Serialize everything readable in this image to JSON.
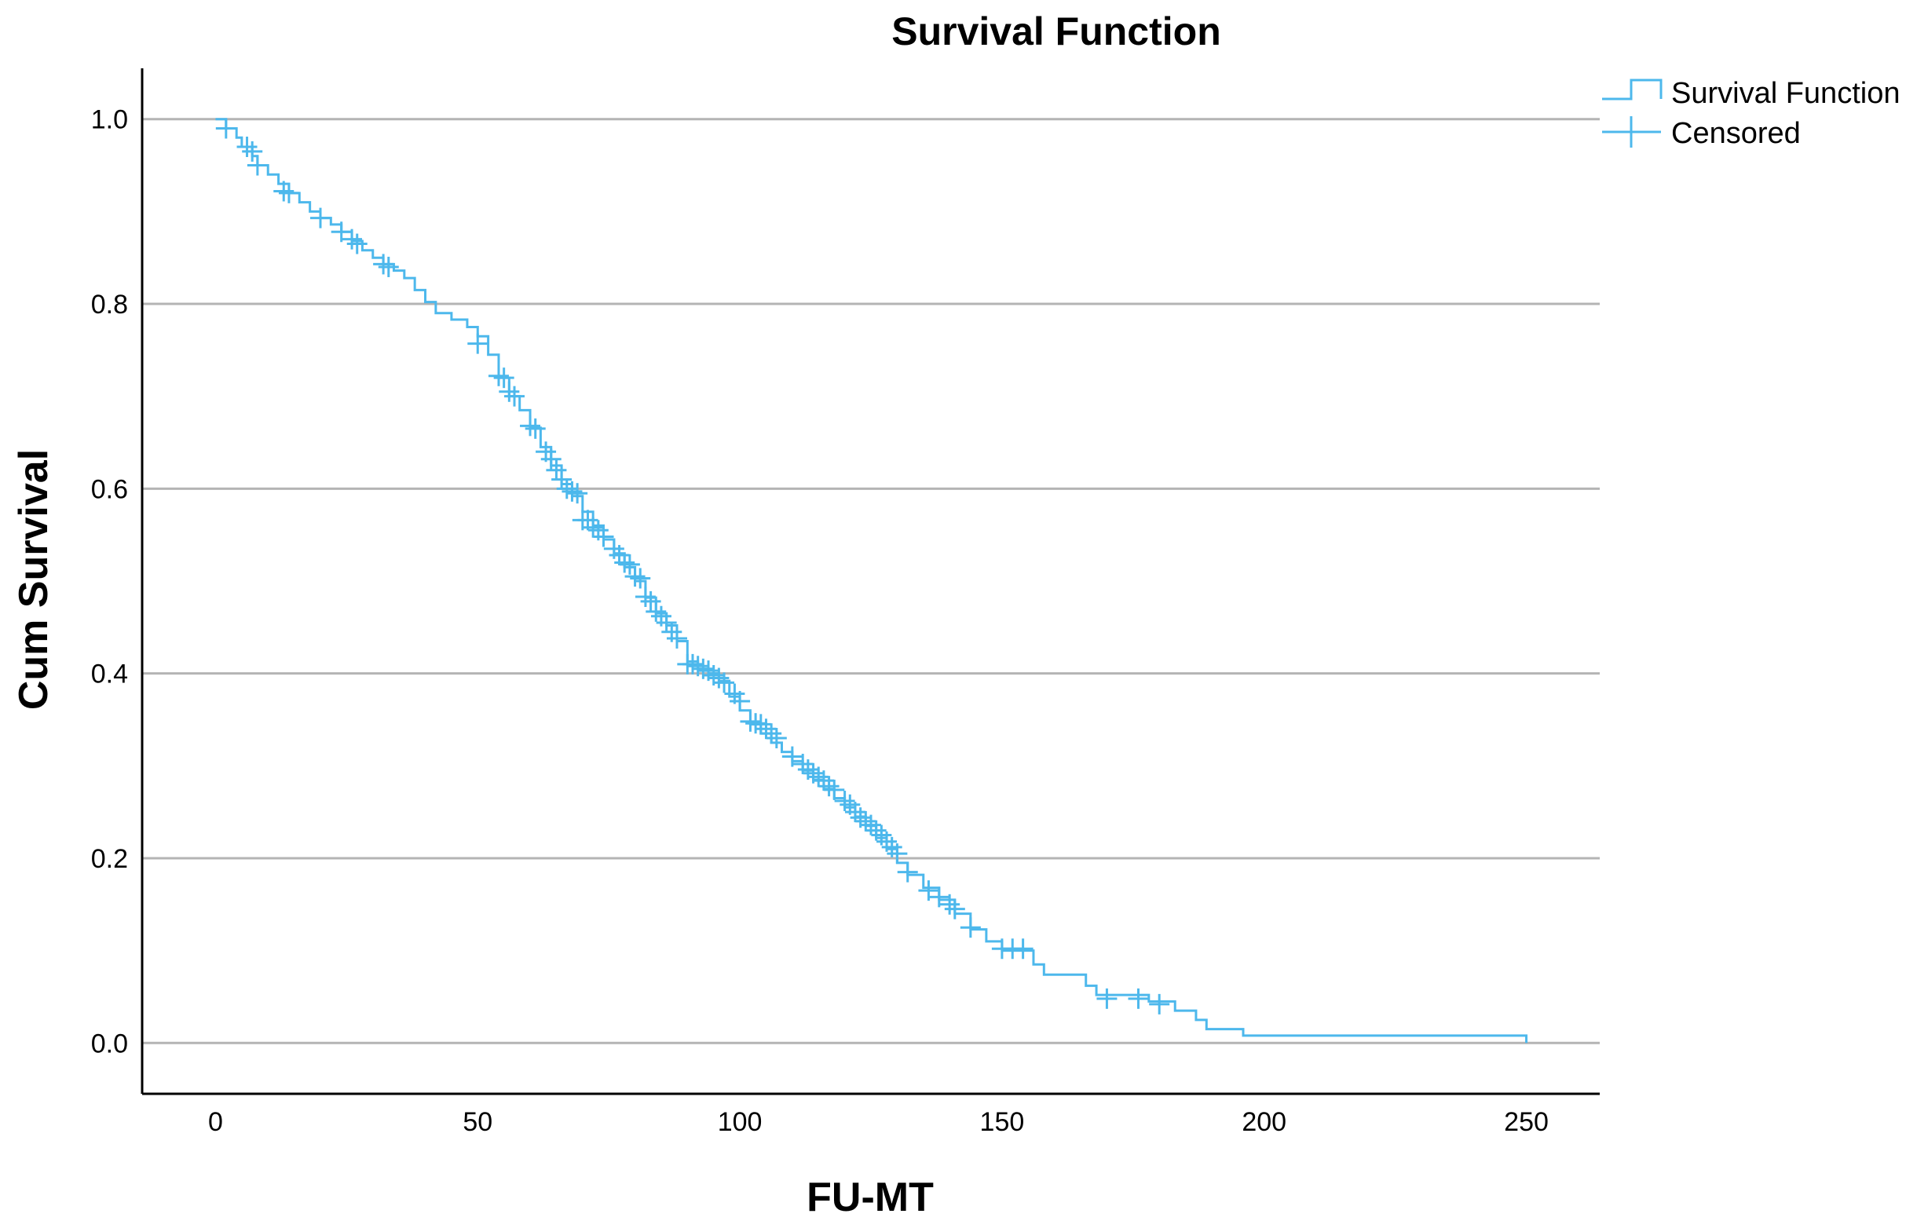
{
  "colors": {
    "series": "#4db8ec",
    "grid": "#b4b4b4",
    "axis": "#000000",
    "text": "#000000"
  },
  "chart_data": {
    "type": "line",
    "subtype": "kaplan-meier survival curve (step)",
    "title": "Survival Function",
    "xlabel": "FU-MT",
    "ylabel": "Cum Survival",
    "xlim": [
      -14,
      264
    ],
    "ylim": [
      -0.055,
      1.055
    ],
    "x_ticks": [
      0,
      50,
      100,
      150,
      200,
      250
    ],
    "y_ticks": [
      0.0,
      0.2,
      0.4,
      0.6,
      0.8,
      1.0
    ],
    "x_tick_labels": [
      "0",
      "50",
      "100",
      "150",
      "200",
      "250"
    ],
    "y_tick_labels": [
      "0.0",
      "0.2",
      "0.4",
      "0.6",
      "0.8",
      "1.0"
    ],
    "grid": "horizontal at y ticks",
    "legend_position": "top-right, outside plot",
    "legend": [
      {
        "name": "Survival Function",
        "symbol": "step-line"
      },
      {
        "name": "Censored",
        "symbol": "plus"
      }
    ],
    "series": [
      {
        "name": "Survival Function",
        "step_points": [
          [
            0,
            1.0
          ],
          [
            2,
            0.99
          ],
          [
            4,
            0.98
          ],
          [
            5,
            0.97
          ],
          [
            7,
            0.96
          ],
          [
            8,
            0.95
          ],
          [
            10,
            0.94
          ],
          [
            12,
            0.93
          ],
          [
            14,
            0.92
          ],
          [
            16,
            0.91
          ],
          [
            18,
            0.9
          ],
          [
            20,
            0.893
          ],
          [
            22,
            0.886
          ],
          [
            24,
            0.878
          ],
          [
            26,
            0.868
          ],
          [
            28,
            0.858
          ],
          [
            30,
            0.85
          ],
          [
            32,
            0.843
          ],
          [
            34,
            0.836
          ],
          [
            36,
            0.828
          ],
          [
            38,
            0.815
          ],
          [
            40,
            0.802
          ],
          [
            42,
            0.79
          ],
          [
            45,
            0.783
          ],
          [
            48,
            0.775
          ],
          [
            50,
            0.765
          ],
          [
            52,
            0.745
          ],
          [
            54,
            0.72
          ],
          [
            56,
            0.7
          ],
          [
            58,
            0.685
          ],
          [
            60,
            0.666
          ],
          [
            62,
            0.645
          ],
          [
            64,
            0.625
          ],
          [
            66,
            0.605
          ],
          [
            68,
            0.592
          ],
          [
            70,
            0.575
          ],
          [
            72,
            0.56
          ],
          [
            74,
            0.545
          ],
          [
            76,
            0.53
          ],
          [
            78,
            0.515
          ],
          [
            80,
            0.5
          ],
          [
            82,
            0.482
          ],
          [
            84,
            0.465
          ],
          [
            86,
            0.452
          ],
          [
            88,
            0.435
          ],
          [
            90,
            0.413
          ],
          [
            92,
            0.405
          ],
          [
            94,
            0.4
          ],
          [
            96,
            0.392
          ],
          [
            98,
            0.375
          ],
          [
            100,
            0.36
          ],
          [
            102,
            0.345
          ],
          [
            104,
            0.335
          ],
          [
            106,
            0.325
          ],
          [
            108,
            0.315
          ],
          [
            110,
            0.305
          ],
          [
            112,
            0.295
          ],
          [
            114,
            0.285
          ],
          [
            116,
            0.275
          ],
          [
            118,
            0.265
          ],
          [
            120,
            0.255
          ],
          [
            122,
            0.245
          ],
          [
            124,
            0.235
          ],
          [
            126,
            0.222
          ],
          [
            128,
            0.21
          ],
          [
            130,
            0.195
          ],
          [
            132,
            0.182
          ],
          [
            135,
            0.168
          ],
          [
            138,
            0.155
          ],
          [
            141,
            0.14
          ],
          [
            144,
            0.123
          ],
          [
            147,
            0.11
          ],
          [
            150,
            0.1
          ],
          [
            156,
            0.085
          ],
          [
            158,
            0.074
          ],
          [
            166,
            0.062
          ],
          [
            168,
            0.052
          ],
          [
            178,
            0.045
          ],
          [
            183,
            0.035
          ],
          [
            187,
            0.025
          ],
          [
            189,
            0.015
          ],
          [
            196,
            0.008
          ],
          [
            250,
            0.0
          ]
        ],
        "censored": [
          [
            2,
            0.99
          ],
          [
            6,
            0.97
          ],
          [
            7,
            0.965
          ],
          [
            8,
            0.95
          ],
          [
            13,
            0.922
          ],
          [
            14,
            0.92
          ],
          [
            20,
            0.893
          ],
          [
            24,
            0.878
          ],
          [
            26,
            0.87
          ],
          [
            27,
            0.865
          ],
          [
            32,
            0.843
          ],
          [
            33,
            0.84
          ],
          [
            50,
            0.757
          ],
          [
            54,
            0.722
          ],
          [
            55,
            0.72
          ],
          [
            56,
            0.705
          ],
          [
            57,
            0.7
          ],
          [
            60,
            0.668
          ],
          [
            61,
            0.665
          ],
          [
            63,
            0.64
          ],
          [
            64,
            0.632
          ],
          [
            65,
            0.62
          ],
          [
            66,
            0.61
          ],
          [
            67,
            0.6
          ],
          [
            68,
            0.597
          ],
          [
            69,
            0.595
          ],
          [
            70,
            0.566
          ],
          [
            71,
            0.566
          ],
          [
            72,
            0.558
          ],
          [
            73,
            0.555
          ],
          [
            74,
            0.548
          ],
          [
            76,
            0.535
          ],
          [
            77,
            0.528
          ],
          [
            78,
            0.52
          ],
          [
            79,
            0.518
          ],
          [
            80,
            0.505
          ],
          [
            81,
            0.503
          ],
          [
            82,
            0.483
          ],
          [
            83,
            0.478
          ],
          [
            84,
            0.467
          ],
          [
            85,
            0.462
          ],
          [
            86,
            0.455
          ],
          [
            87,
            0.445
          ],
          [
            88,
            0.438
          ],
          [
            90,
            0.41
          ],
          [
            91,
            0.41
          ],
          [
            92,
            0.408
          ],
          [
            93,
            0.405
          ],
          [
            94,
            0.403
          ],
          [
            95,
            0.398
          ],
          [
            96,
            0.395
          ],
          [
            97,
            0.39
          ],
          [
            99,
            0.378
          ],
          [
            100,
            0.37
          ],
          [
            102,
            0.348
          ],
          [
            103,
            0.346
          ],
          [
            104,
            0.345
          ],
          [
            105,
            0.34
          ],
          [
            106,
            0.335
          ],
          [
            107,
            0.33
          ],
          [
            110,
            0.31
          ],
          [
            112,
            0.302
          ],
          [
            113,
            0.296
          ],
          [
            114,
            0.292
          ],
          [
            115,
            0.288
          ],
          [
            116,
            0.284
          ],
          [
            117,
            0.278
          ],
          [
            118,
            0.274
          ],
          [
            120,
            0.262
          ],
          [
            121,
            0.258
          ],
          [
            122,
            0.25
          ],
          [
            123,
            0.244
          ],
          [
            124,
            0.24
          ],
          [
            125,
            0.236
          ],
          [
            126,
            0.23
          ],
          [
            127,
            0.225
          ],
          [
            128,
            0.218
          ],
          [
            129,
            0.212
          ],
          [
            130,
            0.205
          ],
          [
            132,
            0.185
          ],
          [
            136,
            0.165
          ],
          [
            138,
            0.158
          ],
          [
            140,
            0.15
          ],
          [
            141,
            0.145
          ],
          [
            144,
            0.125
          ],
          [
            150,
            0.102
          ],
          [
            152,
            0.102
          ],
          [
            154,
            0.102
          ],
          [
            170,
            0.048
          ],
          [
            176,
            0.048
          ],
          [
            180,
            0.042
          ]
        ]
      }
    ]
  }
}
